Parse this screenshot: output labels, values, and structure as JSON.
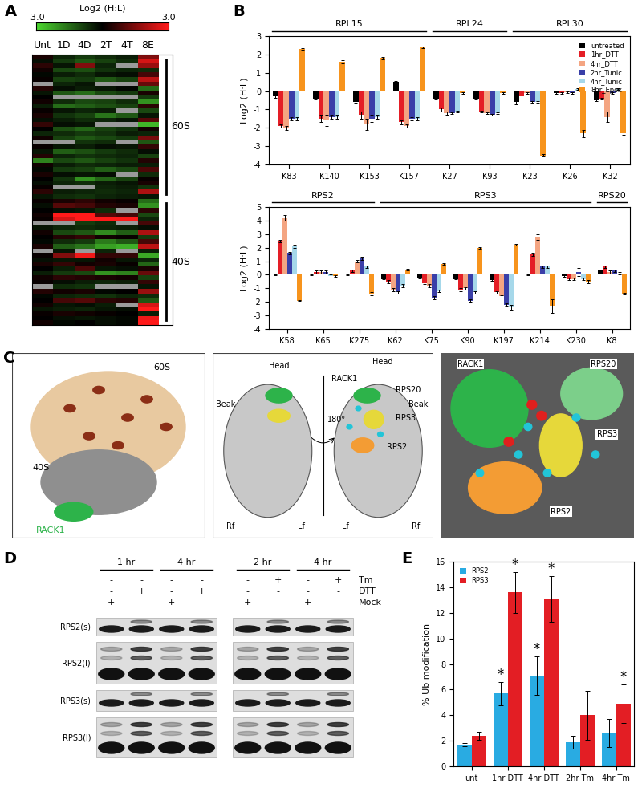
{
  "panel_labels": [
    "A",
    "B",
    "C",
    "D",
    "E"
  ],
  "chart_data": [
    {
      "type": "heatmap",
      "columns": [
        "Unt",
        "1D",
        "4D",
        "2T",
        "4T",
        "8E"
      ],
      "colorbar": {
        "label": "Log2 (H:L)",
        "range": [
          -3.0,
          3.0
        ],
        "ticks": [
          {
            "value": -3.0,
            "label": "-3.0"
          },
          {
            "value": 3.0,
            "label": "3.0"
          }
        ]
      },
      "groups": [
        {
          "label": "60S",
          "cells": [
            [
              0.3,
              -0.5,
              -0.8,
              -0.6,
              -0.4,
              1.5
            ],
            [
              -0.2,
              -0.8,
              -1.2,
              -0.9,
              -0.6,
              2.5
            ],
            [
              0.5,
              -0.3,
              1.5,
              -0.5,
              null,
              1.8
            ],
            [
              0.2,
              -1.0,
              -1.1,
              -0.7,
              -0.5,
              -0.6
            ],
            [
              -0.1,
              -0.4,
              -0.6,
              -0.3,
              -0.2,
              0.8
            ],
            [
              0.1,
              -0.9,
              -0.8,
              -1.2,
              -0.9,
              2.2
            ],
            [
              null,
              -0.5,
              -0.3,
              null,
              null,
              1.2
            ],
            [
              0.4,
              -0.2,
              -0.4,
              -0.3,
              -0.1,
              -1.5
            ],
            [
              -0.3,
              -1.2,
              -1.5,
              -1.0,
              -0.8,
              0.3
            ],
            [
              0.0,
              null,
              null,
              null,
              null,
              -0.8
            ],
            [
              0.2,
              -0.6,
              -1.0,
              -0.9,
              -0.6,
              -2.0
            ],
            [
              -0.4,
              -1.5,
              -1.3,
              -1.1,
              -0.9,
              0.5
            ],
            [
              0.1,
              -0.3,
              -0.5,
              -0.4,
              null,
              -1.0
            ],
            [
              0.3,
              -0.7,
              -0.9,
              -1.6,
              -1.2,
              -0.3
            ],
            [
              -0.2,
              -0.4,
              -0.6,
              -0.5,
              -0.3,
              1.0
            ],
            [
              0.6,
              -0.2,
              -0.3,
              null,
              null,
              -2.5
            ],
            [
              0.0,
              -1.1,
              -1.4,
              -0.9,
              -0.7,
              0.2
            ],
            [
              -0.5,
              -0.6,
              -0.8,
              -0.7,
              -0.4,
              -0.5
            ],
            [
              0.2,
              -0.9,
              -1.2,
              -1.0,
              -0.8,
              1.4
            ],
            [
              null,
              null,
              -0.7,
              -0.6,
              null,
              -1.2
            ],
            [
              0.1,
              -0.3,
              -0.4,
              -0.2,
              -0.3,
              0.6
            ],
            [
              -0.3,
              -1.3,
              -1.1,
              -0.8,
              -0.6,
              -0.2
            ],
            [
              0.4,
              -0.5,
              -0.7,
              -0.6,
              -0.5,
              -0.9
            ],
            [
              -1.8,
              -1.0,
              -1.2,
              -0.9,
              -0.7,
              0.4
            ],
            [
              0.2,
              -0.4,
              -0.6,
              -0.5,
              -0.4,
              -0.4
            ],
            [
              -0.1,
              -0.8,
              -0.9,
              -1.3,
              -1.0,
              0.9
            ],
            [
              0.3,
              -0.2,
              -0.3,
              -0.2,
              null,
              -0.6
            ],
            [
              0.0,
              -0.7,
              -2.0,
              -1.4,
              -0.9,
              0.1
            ],
            [
              -0.2,
              -0.5,
              -0.6,
              -0.4,
              -0.3,
              0.3
            ],
            [
              0.1,
              null,
              null,
              -0.5,
              -0.4,
              -0.7
            ],
            [
              0.5,
              -0.4,
              -0.5,
              -0.6,
              -0.5,
              2.0
            ],
            [
              -0.3,
              -0.6,
              -0.7,
              -0.5,
              -0.4,
              -0.3
            ]
          ]
        },
        {
          "label": "40S",
          "cells": [
            [
              0.1,
              0.3,
              0.5,
              0.2,
              0.1,
              -1.5
            ],
            [
              -0.2,
              1.0,
              0.8,
              0.4,
              0.3,
              -2.0
            ],
            [
              0.0,
              -0.2,
              -0.3,
              -0.6,
              null,
              0.5
            ],
            [
              0.2,
              3.0,
              3.0,
              1.0,
              0.8,
              -1.0
            ],
            [
              0.1,
              2.5,
              3.0,
              3.0,
              3.0,
              -0.5
            ],
            [
              null,
              null,
              -0.8,
              -0.6,
              null,
              0.8
            ],
            [
              -0.3,
              -0.5,
              -0.6,
              -0.5,
              -0.4,
              -0.2
            ],
            [
              0.2,
              -1.0,
              -1.2,
              -1.9,
              -1.3,
              2.0
            ],
            [
              0.0,
              0.4,
              0.6,
              0.2,
              0.1,
              -0.8
            ],
            [
              -0.1,
              -0.6,
              -0.8,
              -1.7,
              -1.2,
              0.8
            ],
            [
              0.3,
              -1.3,
              -1.6,
              -2.2,
              -2.4,
              2.2
            ],
            [
              null,
              -0.3,
              null,
              -0.5,
              null,
              -0.4
            ],
            [
              0.1,
              1.5,
              2.8,
              0.6,
              0.6,
              -2.3
            ],
            [
              -0.2,
              -0.3,
              -0.3,
              0.2,
              -0.3,
              -0.5
            ],
            [
              0.3,
              0.6,
              0.2,
              0.3,
              0.1,
              -1.4
            ],
            [
              0.0,
              -0.4,
              0.9,
              -0.3,
              -0.2,
              0.3
            ],
            [
              -0.4,
              -0.8,
              -1.0,
              -2.0,
              -1.8,
              1.2
            ],
            [
              0.2,
              0.5,
              0.4,
              0.3,
              0.2,
              -0.9
            ],
            [
              0.1,
              -0.2,
              -0.4,
              -0.5,
              -0.4,
              0.6
            ],
            [
              null,
              -0.6,
              -0.7,
              null,
              null,
              -0.3
            ],
            [
              0.4,
              0.2,
              0.3,
              -0.1,
              0.0,
              1.8
            ],
            [
              -0.1,
              -0.5,
              -0.6,
              -0.7,
              -0.5,
              -0.6
            ],
            [
              0.0,
              0.8,
              1.0,
              0.5,
              0.4,
              -1.2
            ],
            [
              0.2,
              -0.3,
              -0.2,
              -0.4,
              null,
              2.5
            ],
            [
              -0.3,
              -0.4,
              -0.5,
              -0.3,
              -0.2,
              3.0
            ],
            [
              0.1,
              0.3,
              0.2,
              0.1,
              0.0,
              -0.4
            ],
            [
              0.0,
              -0.2,
              -0.3,
              -0.2,
              -0.1,
              2.8
            ],
            [
              0.2,
              -0.1,
              0.0,
              -0.2,
              -0.1,
              3.0
            ]
          ]
        }
      ]
    },
    {
      "type": "bar",
      "categories": [
        "K83",
        "K140",
        "K153",
        "K157",
        "K27",
        "K93",
        "K23",
        "K26",
        "K32"
      ],
      "category_groups": [
        "RPL15",
        "RPL15",
        "RPL15",
        "RPL15",
        "RPL24",
        "RPL24",
        "RPL30",
        "RPL30",
        "RPL30"
      ],
      "y_label": "Log2 (H:L)",
      "ylim": [
        -4,
        3
      ],
      "yticks": [
        -4,
        -3,
        -2,
        -1,
        0,
        1,
        2,
        3
      ],
      "legend": "upper right",
      "series": [
        {
          "name": "untreated",
          "color": "#000000",
          "values": [
            -0.3,
            -0.4,
            -0.6,
            0.5,
            -0.4,
            -0.4,
            -0.6,
            -0.1,
            -0.5
          ],
          "errors": [
            0.05,
            0.05,
            0.05,
            0.05,
            0.05,
            0.05,
            0.1,
            0.05,
            0.05
          ]
        },
        {
          "name": "1hr_DTT",
          "color": "#e41e26",
          "values": [
            -1.9,
            -1.5,
            -1.3,
            -1.7,
            -1.0,
            -1.1,
            -0.3,
            -0.1,
            -0.4
          ],
          "errors": [
            0.1,
            0.2,
            0.2,
            0.1,
            0.1,
            0.05,
            0.1,
            0.05,
            0.05
          ]
        },
        {
          "name": "4hr_DTT",
          "color": "#f4a582",
          "values": [
            -2.0,
            -1.6,
            -1.8,
            -1.9,
            -1.2,
            -1.2,
            -0.1,
            -0.05,
            -1.4
          ],
          "errors": [
            0.1,
            0.3,
            0.3,
            0.1,
            0.1,
            0.05,
            0.05,
            0.05,
            0.3
          ]
        },
        {
          "name": "2hr_Tunic",
          "color": "#3a3fa8",
          "values": [
            -1.5,
            -1.4,
            -1.5,
            -1.5,
            -1.2,
            -1.3,
            -0.6,
            -0.1,
            -0.1
          ],
          "errors": [
            0.1,
            0.1,
            0.2,
            0.1,
            0.05,
            0.05,
            0.05,
            0.05,
            0.05
          ]
        },
        {
          "name": "4hr_Tunic",
          "color": "#a6d8ea",
          "values": [
            -1.5,
            -1.4,
            -1.4,
            -1.5,
            -1.1,
            -1.2,
            -0.6,
            0.1,
            0.1
          ],
          "errors": [
            0.1,
            0.1,
            0.1,
            0.1,
            0.05,
            0.05,
            0.05,
            0.05,
            0.05
          ]
        },
        {
          "name": "8hr_Epox",
          "color": "#f7941d",
          "values": [
            2.3,
            1.6,
            1.8,
            2.4,
            -0.1,
            -0.1,
            -3.5,
            -2.3,
            -2.3
          ],
          "errors": [
            0.05,
            0.1,
            0.05,
            0.05,
            0.05,
            0.05,
            0.05,
            0.2,
            0.1
          ]
        }
      ]
    },
    {
      "type": "bar",
      "categories": [
        "K58",
        "K65",
        "K275",
        "K62",
        "K75",
        "K90",
        "K197",
        "K214",
        "K230",
        "K8"
      ],
      "category_groups": [
        "RPS2",
        "RPS2",
        "RPS2",
        "RPS3",
        "RPS3",
        "RPS3",
        "RPS3",
        "RPS3",
        "RPS3",
        "RPS20"
      ],
      "y_label": "Log2 (H:L)",
      "ylim": [
        -4,
        5
      ],
      "yticks": [
        -4,
        -3,
        -2,
        -1,
        0,
        1,
        2,
        3,
        4,
        5
      ],
      "series": [
        {
          "color": "#000000",
          "values": [
            0.0,
            0.0,
            0.0,
            -0.3,
            -0.2,
            -0.3,
            -0.4,
            0.0,
            -0.1,
            0.3
          ],
          "errors": [
            0.05,
            0.05,
            0.05,
            0.05,
            0.05,
            0.05,
            0.05,
            0.05,
            0.05,
            0.05
          ]
        },
        {
          "color": "#e41e26",
          "values": [
            2.5,
            0.2,
            0.3,
            -0.5,
            -0.6,
            -1.1,
            -1.3,
            1.5,
            -0.3,
            0.6
          ],
          "errors": [
            0.1,
            0.1,
            0.1,
            0.1,
            0.1,
            0.1,
            0.1,
            0.1,
            0.1,
            0.1
          ]
        },
        {
          "color": "#f4a582",
          "values": [
            4.2,
            0.2,
            1.0,
            -1.1,
            -0.8,
            -1.0,
            -1.6,
            2.8,
            -0.3,
            0.2
          ],
          "errors": [
            0.2,
            0.1,
            0.1,
            0.1,
            0.1,
            0.1,
            0.1,
            0.2,
            0.1,
            0.1
          ]
        },
        {
          "color": "#3a3fa8",
          "values": [
            1.6,
            0.2,
            1.2,
            -1.3,
            -1.7,
            -1.9,
            -2.2,
            0.6,
            0.2,
            0.3
          ],
          "errors": [
            0.1,
            0.1,
            0.1,
            0.1,
            0.1,
            0.1,
            0.1,
            0.1,
            0.3,
            0.1
          ]
        },
        {
          "color": "#a6d8ea",
          "values": [
            2.1,
            -0.1,
            0.6,
            -0.8,
            -1.2,
            -1.3,
            -2.4,
            0.6,
            -0.3,
            0.1
          ],
          "errors": [
            0.1,
            0.1,
            0.1,
            0.1,
            0.1,
            0.1,
            0.2,
            0.1,
            0.1,
            0.1
          ]
        },
        {
          "color": "#f7941d",
          "values": [
            -1.9,
            -0.1,
            -1.4,
            0.4,
            0.8,
            2.0,
            2.2,
            -2.3,
            -0.5,
            -1.4
          ],
          "errors": [
            0.05,
            0.05,
            0.1,
            0.05,
            0.05,
            0.05,
            0.05,
            0.5,
            0.1,
            0.05
          ]
        }
      ]
    },
    {
      "type": "bar",
      "categories": [
        "unt",
        "1hr DTT",
        "4hr DTT",
        "2hr Tm",
        "4hr Tm"
      ],
      "y_label": "% Ub modification",
      "ylim": [
        0,
        16
      ],
      "yticks": [
        0,
        2,
        4,
        6,
        8,
        10,
        12,
        14,
        16
      ],
      "legend": "upper left",
      "series": [
        {
          "name": "RPS2",
          "color": "#29abe2",
          "values": [
            1.7,
            5.7,
            7.1,
            1.9,
            2.6
          ],
          "errors": [
            0.1,
            0.9,
            1.5,
            0.5,
            1.1
          ]
        },
        {
          "name": "RPS3",
          "color": "#e31e24",
          "values": [
            2.4,
            13.6,
            13.1,
            4.0,
            4.9
          ],
          "errors": [
            0.3,
            1.6,
            1.8,
            1.9,
            1.5
          ]
        }
      ],
      "annotations": [
        {
          "text": "*",
          "series": "RPS2",
          "category": "1hr DTT"
        },
        {
          "text": "*",
          "series": "RPS3",
          "category": "1hr DTT"
        },
        {
          "text": "*",
          "series": "RPS2",
          "category": "4hr DTT"
        },
        {
          "text": "*",
          "series": "RPS3",
          "category": "4hr DTT"
        },
        {
          "text": "*",
          "series": "RPS3",
          "category": "4hr Tm"
        }
      ]
    }
  ],
  "structure": {
    "views": [
      [
        "60S",
        "40S",
        "RACK1"
      ],
      [
        "Head",
        "Beak",
        "Rf",
        "Lf",
        "180°",
        "Head",
        "Beak",
        "RACK1",
        "RPS20",
        "RPS3",
        "Lf",
        "Rf",
        "RPS2"
      ],
      [
        "RACK1",
        "RPS20",
        "RPS3",
        "RPS2"
      ]
    ]
  },
  "blot": {
    "time_points": [
      "1 hr",
      "4 hr",
      "2 hr",
      "4 hr"
    ],
    "treatments": [
      {
        "name": "Tm",
        "signs": [
          "-",
          "-",
          "-",
          "-",
          "-",
          "+",
          "-",
          "+"
        ]
      },
      {
        "name": "DTT",
        "signs": [
          "-",
          "+",
          "-",
          "+",
          "-",
          "-",
          "-",
          "-"
        ]
      },
      {
        "name": "Mock",
        "signs": [
          "+",
          "-",
          "+",
          "-",
          "+",
          "-",
          "+",
          "-"
        ]
      }
    ],
    "bands": [
      "RPS2(s)",
      "RPS2(l)",
      "RPS3(s)",
      "RPS3(l)"
    ]
  }
}
